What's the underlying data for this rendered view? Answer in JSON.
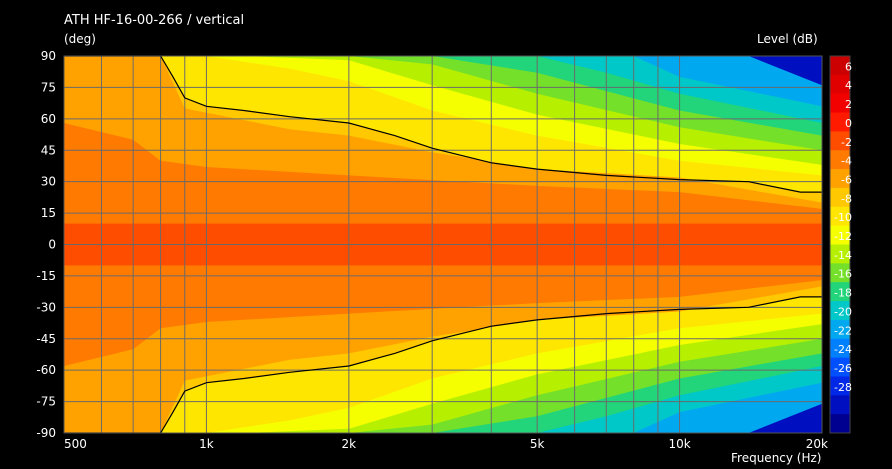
{
  "chart_data": {
    "type": "heatmap",
    "title": "ATH HF-16-00-266 / vertical",
    "ylabel": "(deg)",
    "xlabel": "Frequency  (Hz)",
    "colorbar_label": "Level  (dB)",
    "x_scale": "log",
    "xlim": [
      500,
      20000
    ],
    "ylim": [
      -90,
      90
    ],
    "x_ticks": [
      {
        "value": 500,
        "label": "500"
      },
      {
        "value": 1000,
        "label": "1k"
      },
      {
        "value": 2000,
        "label": "2k"
      },
      {
        "value": 5000,
        "label": "5k"
      },
      {
        "value": 10000,
        "label": "10k"
      },
      {
        "value": 20000,
        "label": "20k"
      }
    ],
    "x_minor_gridlines": [
      600,
      700,
      800,
      900,
      3000,
      4000,
      6000,
      7000,
      8000,
      9000
    ],
    "y_ticks": [
      90,
      75,
      60,
      45,
      30,
      15,
      0,
      -15,
      -30,
      -45,
      -60,
      -75,
      -90
    ],
    "colorbar_levels": [
      6,
      4,
      2,
      0,
      -2,
      -4,
      -6,
      -8,
      -10,
      -12,
      -14,
      -16,
      -18,
      -20,
      -22,
      -24,
      -26,
      -28
    ],
    "colorbar_colors": [
      "#cc0000",
      "#e00000",
      "#f20000",
      "#ff1a00",
      "#ff4d00",
      "#ff7a00",
      "#ffa200",
      "#ffc800",
      "#ffe600",
      "#f5ff00",
      "#b6f000",
      "#74e02a",
      "#22d47a",
      "#00c8c8",
      "#00a8f0",
      "#0080ff",
      "#0050ff",
      "#0028e6",
      "#0010c0",
      "#000090"
    ],
    "grid": true,
    "contour_minus6dB_upper": [
      [
        500,
        90
      ],
      [
        800,
        90
      ],
      [
        850,
        80
      ],
      [
        900,
        70
      ],
      [
        1000,
        66
      ],
      [
        1200,
        64
      ],
      [
        1500,
        61
      ],
      [
        2000,
        58
      ],
      [
        2500,
        52
      ],
      [
        3000,
        46
      ],
      [
        4000,
        39
      ],
      [
        5000,
        36
      ],
      [
        7000,
        33
      ],
      [
        10000,
        31
      ],
      [
        14000,
        30
      ],
      [
        18000,
        25
      ],
      [
        20000,
        25
      ]
    ],
    "contour_minus6dB_lower": [
      [
        500,
        -90
      ],
      [
        800,
        -90
      ],
      [
        850,
        -80
      ],
      [
        900,
        -70
      ],
      [
        1000,
        -66
      ],
      [
        1200,
        -64
      ],
      [
        1500,
        -61
      ],
      [
        2000,
        -58
      ],
      [
        2500,
        -52
      ],
      [
        3000,
        -46
      ],
      [
        4000,
        -39
      ],
      [
        5000,
        -36
      ],
      [
        7000,
        -33
      ],
      [
        10000,
        -31
      ],
      [
        14000,
        -30
      ],
      [
        18000,
        -25
      ],
      [
        20000,
        -25
      ]
    ],
    "beamwidth_bands_db_levels": [
      0,
      -2,
      -4,
      -6,
      -8,
      -10,
      -12,
      -14,
      -16,
      -18,
      -20
    ],
    "beamwidth_bands_half_angle_deg": [
      [
        [
          500,
          10
        ],
        [
          1000,
          10
        ],
        [
          2000,
          10
        ],
        [
          5000,
          10
        ],
        [
          10000,
          10
        ],
        [
          20000,
          10
        ]
      ],
      [
        [
          500,
          58
        ],
        [
          700,
          50
        ],
        [
          800,
          40
        ],
        [
          1000,
          37
        ],
        [
          2000,
          33
        ],
        [
          5000,
          28
        ],
        [
          10000,
          25
        ],
        [
          20000,
          17
        ]
      ],
      [
        [
          500,
          90
        ],
        [
          800,
          90
        ],
        [
          900,
          65
        ],
        [
          1500,
          55
        ],
        [
          2000,
          52
        ],
        [
          3000,
          44
        ],
        [
          5000,
          36
        ],
        [
          10000,
          32
        ],
        [
          20000,
          20
        ]
      ],
      [
        [
          500,
          90
        ],
        [
          800,
          90
        ],
        [
          850,
          80
        ],
        [
          900,
          70
        ],
        [
          1000,
          66
        ],
        [
          1200,
          64
        ],
        [
          1500,
          61
        ],
        [
          2000,
          58
        ],
        [
          2500,
          52
        ],
        [
          3000,
          46
        ],
        [
          4000,
          39
        ],
        [
          5000,
          36
        ],
        [
          7000,
          33
        ],
        [
          10000,
          31
        ],
        [
          14000,
          30
        ],
        [
          18000,
          25
        ],
        [
          20000,
          25
        ]
      ],
      [
        [
          500,
          90
        ],
        [
          1000,
          90
        ],
        [
          1500,
          84
        ],
        [
          2000,
          78
        ],
        [
          3000,
          64
        ],
        [
          5000,
          52
        ],
        [
          10000,
          40
        ],
        [
          20000,
          33
        ]
      ],
      [
        [
          500,
          90
        ],
        [
          1200,
          90
        ],
        [
          2000,
          88
        ],
        [
          3000,
          76
        ],
        [
          5000,
          62
        ],
        [
          10000,
          48
        ],
        [
          20000,
          38
        ]
      ],
      [
        [
          500,
          90
        ],
        [
          2000,
          90
        ],
        [
          3000,
          86
        ],
        [
          5000,
          72
        ],
        [
          10000,
          56
        ],
        [
          20000,
          45
        ]
      ],
      [
        [
          500,
          90
        ],
        [
          3000,
          90
        ],
        [
          5000,
          82
        ],
        [
          10000,
          64
        ],
        [
          20000,
          52
        ]
      ],
      [
        [
          500,
          90
        ],
        [
          5000,
          90
        ],
        [
          7000,
          82
        ],
        [
          10000,
          72
        ],
        [
          20000,
          58
        ]
      ],
      [
        [
          500,
          90
        ],
        [
          8000,
          90
        ],
        [
          10000,
          80
        ],
        [
          20000,
          66
        ]
      ],
      [
        [
          500,
          90
        ],
        [
          14000,
          90
        ],
        [
          20000,
          76
        ]
      ]
    ]
  }
}
